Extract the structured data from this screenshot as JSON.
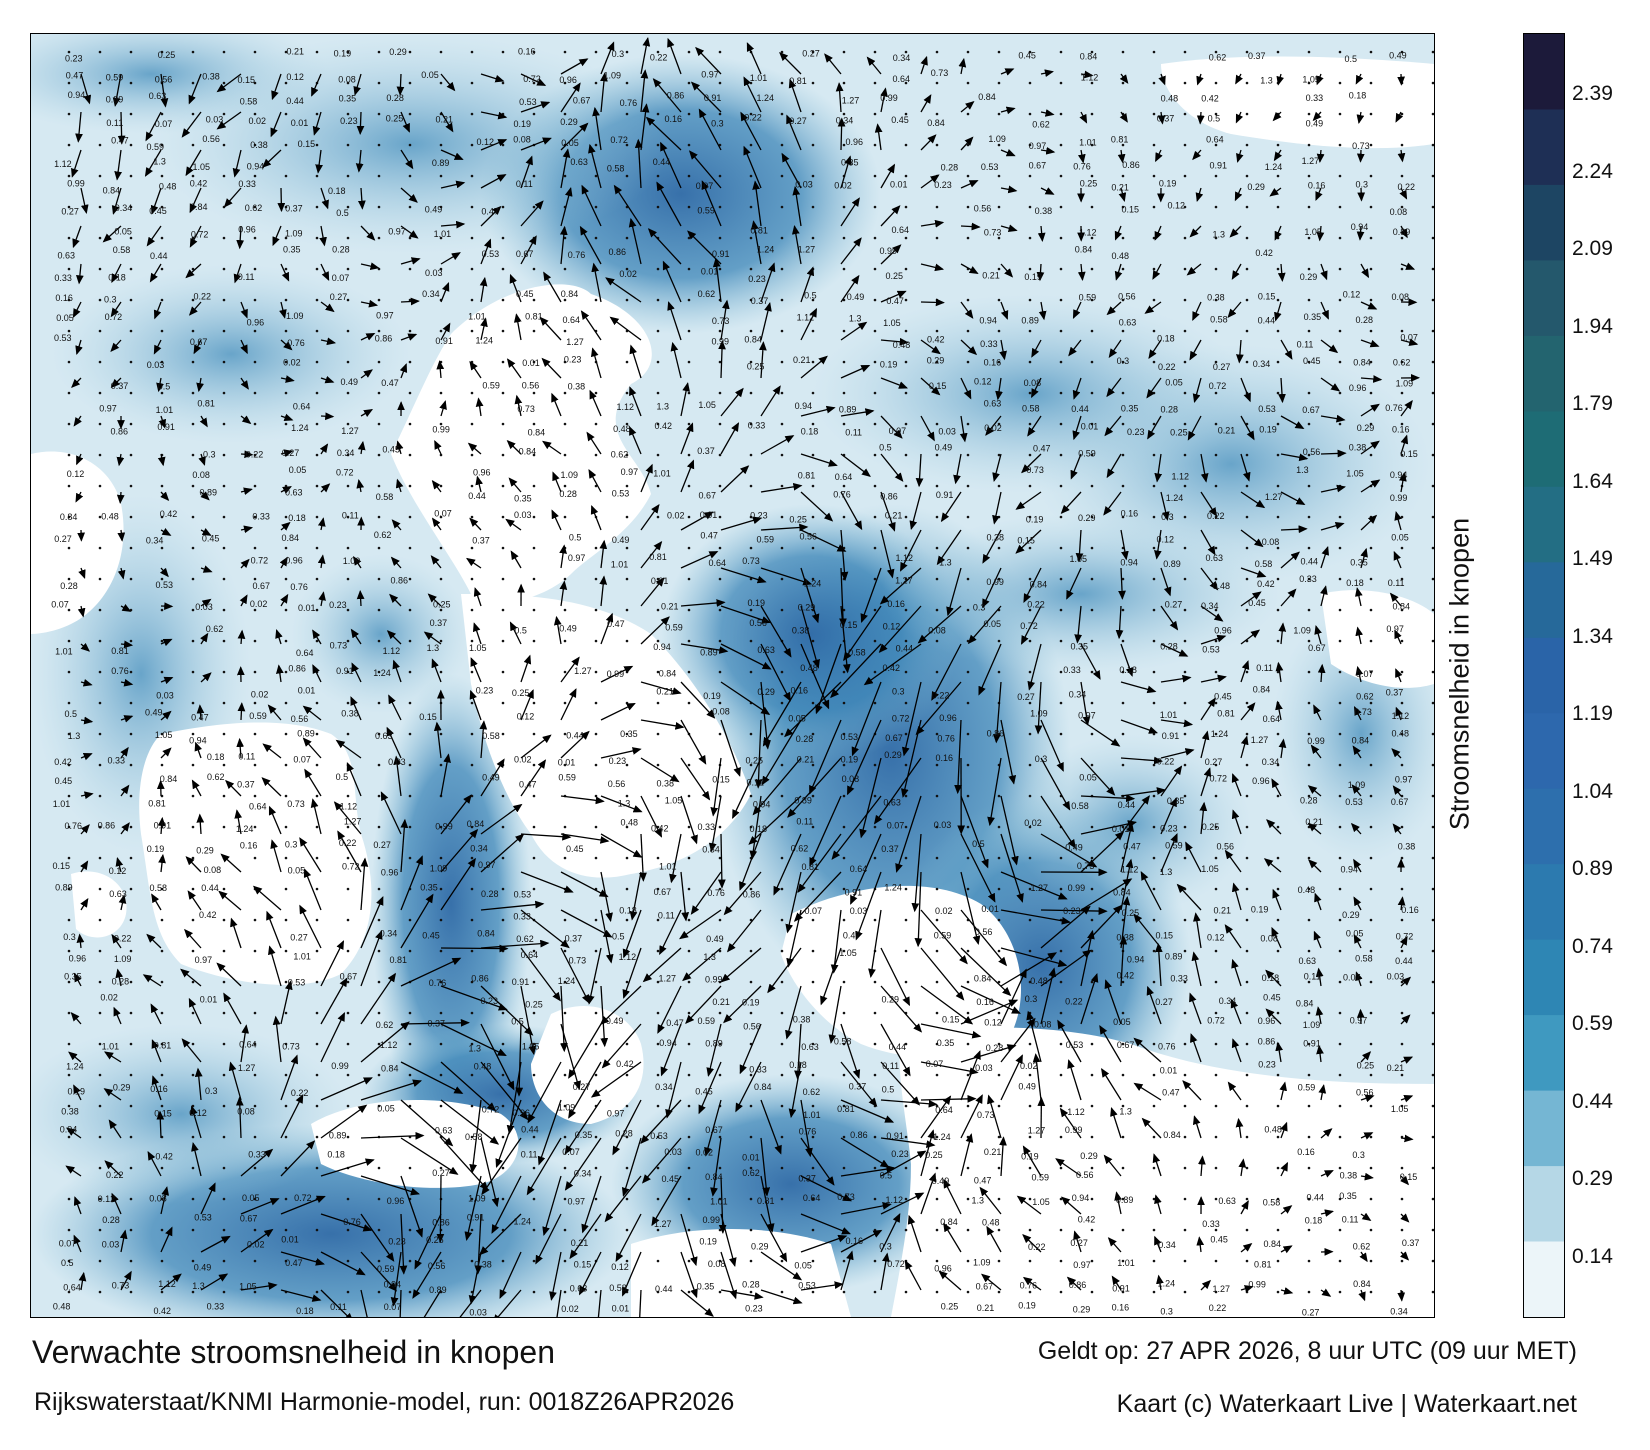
{
  "title": "Verwachte stroomsnelheid in knopen",
  "subtitle": "Rijkswaterstaat/KNMI Harmonie-model, run: 0018Z26APR2026",
  "valid_time": "Geldt op: 27 APR 2026, 8 uur UTC (09 uur MET)",
  "copyright": "Kaart (c) Waterkaart Live | Waterkaart.net",
  "colorbar": {
    "title": "Stroomsnelheid in knopen",
    "ticks": [
      "2.39",
      "2.24",
      "2.09",
      "1.94",
      "1.79",
      "1.64",
      "1.49",
      "1.34",
      "1.19",
      "1.04",
      "0.89",
      "0.74",
      "0.59",
      "0.44",
      "0.29",
      "0.14"
    ],
    "colors": [
      "#1c1a3a",
      "#1e2f55",
      "#1d4563",
      "#24586c",
      "#23646f",
      "#1e6c75",
      "#236e84",
      "#26699a",
      "#2a64a8",
      "#2d68ad",
      "#2d6fad",
      "#2c7aaf",
      "#2e86b4",
      "#3f99c0",
      "#75b6d3",
      "#b5d7e6",
      "#ecf5f9"
    ],
    "min": 0,
    "max": 2.5
  },
  "colors": {
    "land": "#ffffff",
    "sea_calm": "#eaf4f8",
    "sea_mid": "#5a9fc4",
    "sea_strong": "#2f6aa6",
    "arrow": "#000000"
  },
  "map": {
    "variable": "current speed (knots)",
    "region_labels": [],
    "sample_values": [
      {
        "v": "0.23"
      },
      {
        "v": "0.25"
      },
      {
        "v": "0.21"
      },
      {
        "v": "0.19"
      },
      {
        "v": "0.29"
      },
      {
        "v": "0.16"
      },
      {
        "v": "0.3"
      },
      {
        "v": "0.22"
      },
      {
        "v": "0.27"
      },
      {
        "v": "0.34"
      },
      {
        "v": "0.45"
      },
      {
        "v": "0.84"
      },
      {
        "v": "0.62"
      },
      {
        "v": "0.37"
      },
      {
        "v": "0.5"
      },
      {
        "v": "0.49"
      },
      {
        "v": "0.47"
      },
      {
        "v": "0.59"
      },
      {
        "v": "0.56"
      },
      {
        "v": "0.38"
      },
      {
        "v": "0.15"
      },
      {
        "v": "0.12"
      },
      {
        "v": "0.08"
      },
      {
        "v": "0.05"
      },
      {
        "v": "0.72"
      },
      {
        "v": "0.96"
      },
      {
        "v": "1.09"
      },
      {
        "v": "0.97"
      },
      {
        "v": "1.01"
      },
      {
        "v": "0.81"
      },
      {
        "v": "0.64"
      },
      {
        "v": "0.73"
      },
      {
        "v": "1.12"
      },
      {
        "v": "1.3"
      },
      {
        "v": "1.05"
      },
      {
        "v": "0.94"
      },
      {
        "v": "0.89"
      },
      {
        "v": "0.63"
      },
      {
        "v": "0.58"
      },
      {
        "v": "0.44"
      },
      {
        "v": "0.35"
      },
      {
        "v": "0.28"
      },
      {
        "v": "0.53"
      },
      {
        "v": "0.67"
      },
      {
        "v": "0.76"
      },
      {
        "v": "0.86"
      },
      {
        "v": "0.91"
      },
      {
        "v": "1.24"
      },
      {
        "v": "1.27"
      },
      {
        "v": "0.99"
      },
      {
        "v": "0.84"
      },
      {
        "v": "0.48"
      },
      {
        "v": "0.42"
      },
      {
        "v": "0.33"
      },
      {
        "v": "0.18"
      },
      {
        "v": "0.11"
      },
      {
        "v": "0.07"
      },
      {
        "v": "0.03"
      },
      {
        "v": "0.02"
      },
      {
        "v": "0.01"
      }
    ]
  }
}
